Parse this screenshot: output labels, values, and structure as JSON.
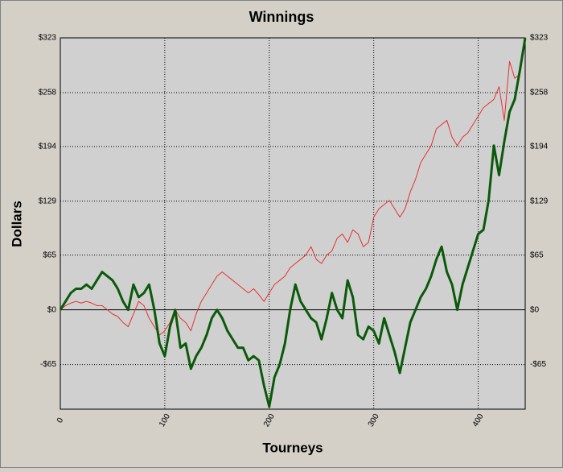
{
  "chart_data": {
    "type": "line",
    "title": "Winnings",
    "x_label": "Tourneys",
    "y_label": "Dollars",
    "x": [
      0,
      5,
      10,
      15,
      20,
      25,
      30,
      35,
      40,
      45,
      50,
      55,
      60,
      65,
      70,
      75,
      80,
      85,
      90,
      95,
      100,
      105,
      110,
      115,
      120,
      125,
      130,
      135,
      140,
      145,
      150,
      155,
      160,
      165,
      170,
      175,
      180,
      185,
      190,
      195,
      200,
      205,
      210,
      215,
      220,
      225,
      230,
      235,
      240,
      245,
      250,
      255,
      260,
      265,
      270,
      275,
      280,
      285,
      290,
      295,
      300,
      305,
      310,
      315,
      320,
      325,
      330,
      335,
      340,
      345,
      350,
      355,
      360,
      365,
      370,
      375,
      380,
      385,
      390,
      395,
      400,
      405,
      410,
      415,
      420,
      425,
      430,
      435,
      440,
      445
    ],
    "series": [
      {
        "color": "#e83030",
        "width": 1,
        "values": [
          0,
          5,
          8,
          10,
          8,
          10,
          8,
          5,
          5,
          0,
          -5,
          -8,
          -15,
          -20,
          -5,
          10,
          5,
          -10,
          -20,
          -30,
          -25,
          -15,
          0,
          -10,
          -15,
          -25,
          -5,
          10,
          20,
          30,
          40,
          45,
          40,
          35,
          30,
          25,
          20,
          25,
          18,
          10,
          20,
          30,
          35,
          40,
          50,
          55,
          60,
          65,
          75,
          60,
          55,
          65,
          70,
          85,
          90,
          80,
          95,
          90,
          75,
          80,
          110,
          120,
          125,
          130,
          120,
          110,
          120,
          140,
          155,
          175,
          185,
          195,
          215,
          220,
          225,
          205,
          195,
          205,
          210,
          220,
          230,
          240,
          245,
          250,
          265,
          225,
          295,
          275,
          280,
          323
        ]
      },
      {
        "color": "#0a5a0a",
        "width": 3,
        "values": [
          0,
          10,
          20,
          25,
          25,
          30,
          25,
          35,
          45,
          40,
          35,
          25,
          10,
          0,
          30,
          15,
          20,
          30,
          0,
          -40,
          -55,
          -20,
          0,
          -45,
          -40,
          -70,
          -55,
          -45,
          -30,
          -10,
          0,
          -10,
          -25,
          -35,
          -45,
          -45,
          -60,
          -55,
          -60,
          -90,
          -115,
          -80,
          -65,
          -40,
          0,
          30,
          10,
          0,
          -10,
          -15,
          -35,
          -10,
          20,
          0,
          -10,
          35,
          15,
          -30,
          -35,
          -20,
          -25,
          -40,
          -10,
          -30,
          -50,
          -75,
          -45,
          -15,
          0,
          15,
          25,
          40,
          60,
          75,
          45,
          30,
          0,
          30,
          50,
          70,
          90,
          95,
          130,
          195,
          160,
          200,
          235,
          250,
          285,
          323
        ]
      }
    ],
    "xlim": [
      0,
      445
    ],
    "xticks": [
      0,
      100,
      200,
      300,
      400
    ],
    "ylim": [
      -118,
      323
    ],
    "yticks": [
      {
        "value": -65,
        "label": "-$65"
      },
      {
        "value": 0,
        "label": "$0"
      },
      {
        "value": 65,
        "label": "$65"
      },
      {
        "value": 129,
        "label": "$129"
      },
      {
        "value": 194,
        "label": "$194"
      },
      {
        "value": 258,
        "label": "$258"
      },
      {
        "value": 323,
        "label": "$323"
      }
    ],
    "grid": true
  }
}
